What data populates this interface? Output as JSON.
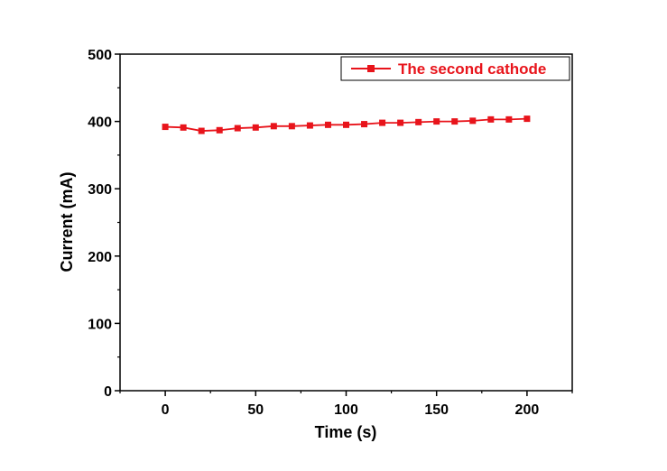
{
  "chart_data": {
    "type": "line",
    "title": "",
    "xlabel": "Time (s)",
    "ylabel": "Current (mA)",
    "xlim": [
      -25,
      225
    ],
    "ylim": [
      0,
      500
    ],
    "xticks": [
      0,
      50,
      100,
      150,
      200
    ],
    "yticks": [
      0,
      100,
      200,
      300,
      400,
      500
    ],
    "xtick_labels": [
      "0",
      "50",
      "100",
      "150",
      "200"
    ],
    "ytick_labels": [
      "0",
      "100",
      "200",
      "300",
      "400",
      "500"
    ],
    "grid": false,
    "legend_position": "top-right",
    "series": [
      {
        "name": "The second cathode",
        "color": "#e8141b",
        "marker": "square",
        "x": [
          0,
          10,
          20,
          30,
          40,
          50,
          60,
          70,
          80,
          90,
          100,
          110,
          120,
          130,
          140,
          150,
          160,
          170,
          180,
          190,
          200
        ],
        "y": [
          392,
          391,
          386,
          387,
          390,
          391,
          393,
          393,
          394,
          395,
          395,
          396,
          398,
          398,
          399,
          400,
          400,
          401,
          403,
          403,
          404
        ]
      }
    ]
  }
}
